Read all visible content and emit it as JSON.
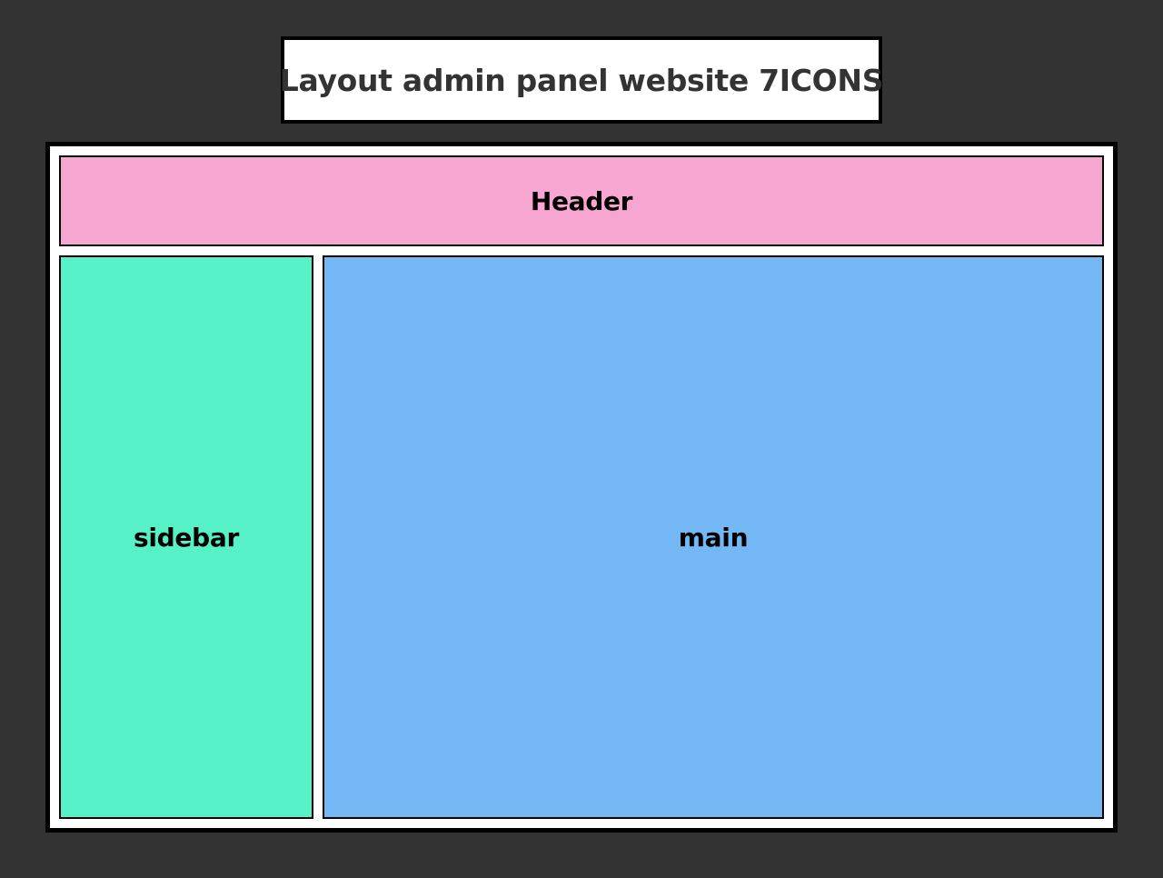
{
  "page": {
    "title": "Layout admin panel website 7ICONS"
  },
  "layout": {
    "header_label": "Header",
    "sidebar_label": "sidebar",
    "main_label": "main"
  },
  "colors": {
    "background": "#333333",
    "frame": "#ffffff",
    "header": "#f7a6d1",
    "sidebar": "#56f1c7",
    "main": "#73b8f5",
    "border": "#000000"
  }
}
